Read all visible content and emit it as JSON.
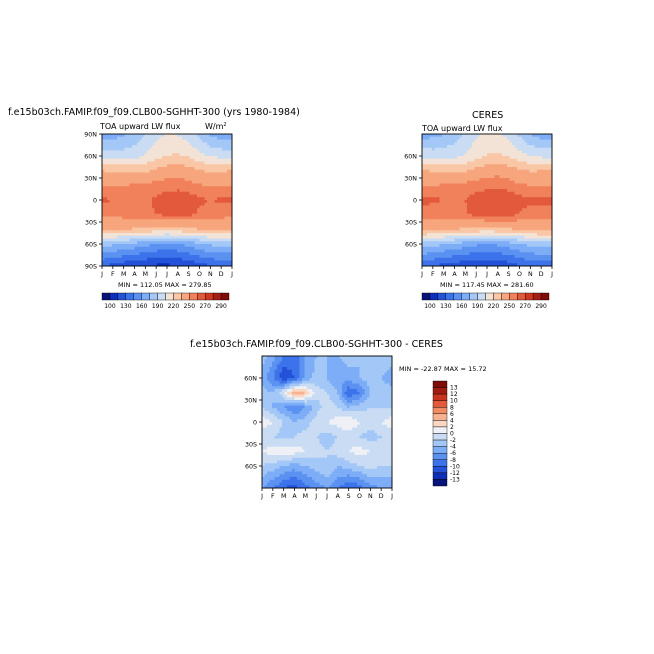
{
  "colors": {
    "model_palette": [
      "#08147a",
      "#0d2fb8",
      "#2352d9",
      "#3d73ea",
      "#5b92f2",
      "#7cadf6",
      "#a3c8f7",
      "#c9dcf3",
      "#f3e3d6",
      "#f9c7a6",
      "#f7a57c",
      "#f0815a",
      "#e2593c",
      "#cc3a22",
      "#a71f14",
      "#7e0c08"
    ],
    "diff_palette": [
      "#08147a",
      "#0d2fb8",
      "#2352d9",
      "#3d73ea",
      "#5b92f2",
      "#7cadf6",
      "#a3c8f7",
      "#c9dcf3",
      "#eef0f5",
      "#f9d7c2",
      "#f7b391",
      "#f08b63",
      "#e2593c",
      "#c9341f",
      "#a21b12",
      "#7e0c08"
    ]
  },
  "panels": {
    "model": {
      "title": "f.e15b03ch.FAMIP.f09_f09.CLB00-SGHHT-300 (yrs 1980-1984)",
      "subtitle": "TOA upward LW flux",
      "units": "W/m",
      "units_sup": "2",
      "stats": "MIN = 112.05  MAX = 279.85",
      "yticks": [
        "90N",
        "60N",
        "30N",
        "0",
        "30S",
        "60S",
        "90S"
      ],
      "xticks": [
        "J",
        "F",
        "M",
        "A",
        "M",
        "J",
        "J",
        "A",
        "S",
        "O",
        "N",
        "D",
        "J"
      ],
      "colorbar_labels": [
        "100",
        "130",
        "160",
        "190",
        "220",
        "250",
        "270",
        "290"
      ]
    },
    "obs": {
      "title": "CERES",
      "subtitle": "TOA upward LW flux",
      "stats": "MIN = 117.45  MAX = 281.60",
      "yticks": [
        "60N",
        "30N",
        "0",
        "30S",
        "60S"
      ],
      "xticks": [
        "J",
        "F",
        "M",
        "A",
        "M",
        "J",
        "J",
        "A",
        "S",
        "O",
        "N",
        "D",
        "J"
      ],
      "colorbar_labels": [
        "100",
        "130",
        "160",
        "190",
        "220",
        "250",
        "270",
        "290"
      ]
    },
    "diff": {
      "title": "f.e15b03ch.FAMIP.f09_f09.CLB00-SGHHT-300  - CERES",
      "stats": "MIN = -22.87  MAX =  15.72",
      "yticks": [
        "60N",
        "30N",
        "0",
        "30S",
        "60S"
      ],
      "xticks": [
        "J",
        "F",
        "M",
        "A",
        "M",
        "J",
        "J",
        "A",
        "S",
        "O",
        "N",
        "D",
        "J"
      ],
      "colorbar_labels": [
        "13",
        "12",
        "10",
        "8",
        "6",
        "4",
        "2",
        "0",
        "-2",
        "-4",
        "-6",
        "-8",
        "-10",
        "-12",
        "-13"
      ]
    }
  },
  "chart_data": [
    {
      "type": "heatmap",
      "title": "f.e15b03ch.FAMIP.f09_f09.CLB00-SGHHT-300 (yrs 1980-1984)",
      "subtitle": "TOA upward LW flux",
      "xlabel": "",
      "ylabel": "",
      "x": [
        "J",
        "F",
        "M",
        "A",
        "M",
        "J",
        "J",
        "A",
        "S",
        "O",
        "N",
        "D",
        "J"
      ],
      "y": [
        -90,
        -60,
        -30,
        0,
        30,
        60,
        90
      ],
      "ylim": [
        -90,
        90
      ],
      "levels": [
        100,
        115,
        130,
        145,
        160,
        175,
        190,
        205,
        220,
        235,
        250,
        260,
        270,
        280,
        290
      ],
      "values": [
        [
          130,
          125,
          120,
          118,
          115,
          112,
          112,
          113,
          118,
          124,
          128,
          132,
          130
        ],
        [
          180,
          178,
          175,
          170,
          165,
          160,
          158,
          160,
          165,
          172,
          178,
          180,
          180
        ],
        [
          240,
          238,
          236,
          234,
          232,
          230,
          229,
          230,
          232,
          235,
          238,
          240,
          240
        ],
        [
          252,
          253,
          254,
          256,
          258,
          260,
          262,
          263,
          262,
          258,
          255,
          253,
          252
        ],
        [
          262,
          260,
          258,
          256,
          258,
          262,
          265,
          268,
          266,
          262,
          260,
          262,
          262
        ],
        [
          248,
          249,
          250,
          251,
          253,
          255,
          256,
          256,
          254,
          251,
          249,
          248,
          248
        ],
        [
          235,
          233,
          232,
          231,
          233,
          238,
          243,
          245,
          242,
          236,
          233,
          234,
          235
        ],
        [
          200,
          198,
          198,
          200,
          206,
          214,
          220,
          222,
          218,
          210,
          204,
          201,
          200
        ],
        [
          165,
          168,
          172,
          180,
          190,
          200,
          206,
          204,
          198,
          185,
          172,
          166,
          165
        ]
      ],
      "lat": [
        -90,
        -60,
        -40,
        -20,
        0,
        20,
        40,
        60,
        90
      ],
      "stats": {
        "min": 112.05,
        "max": 279.85
      }
    },
    {
      "type": "heatmap",
      "title": "CERES",
      "subtitle": "TOA upward LW flux",
      "xlabel": "",
      "ylabel": "",
      "x": [
        "J",
        "F",
        "M",
        "A",
        "M",
        "J",
        "J",
        "A",
        "S",
        "O",
        "N",
        "D",
        "J"
      ],
      "y": [
        -60,
        -30,
        0,
        30,
        60
      ],
      "ylim": [
        -90,
        90
      ],
      "levels": [
        100,
        115,
        130,
        145,
        160,
        175,
        190,
        205,
        220,
        235,
        250,
        260,
        270,
        280,
        290
      ],
      "values": [
        [
          135,
          130,
          125,
          122,
          119,
          117,
          117,
          118,
          122,
          128,
          132,
          136,
          135
        ],
        [
          182,
          180,
          177,
          172,
          168,
          163,
          162,
          163,
          168,
          174,
          180,
          182,
          182
        ],
        [
          241,
          239,
          237,
          235,
          233,
          231,
          230,
          231,
          233,
          236,
          239,
          241,
          241
        ],
        [
          253,
          254,
          255,
          257,
          259,
          262,
          264,
          265,
          263,
          259,
          256,
          254,
          253
        ],
        [
          264,
          262,
          260,
          258,
          260,
          264,
          267,
          270,
          268,
          264,
          262,
          264,
          264
        ],
        [
          249,
          250,
          251,
          252,
          254,
          256,
          257,
          257,
          255,
          252,
          250,
          249,
          249
        ],
        [
          236,
          234,
          233,
          232,
          234,
          239,
          244,
          246,
          243,
          237,
          234,
          235,
          236
        ],
        [
          201,
          199,
          199,
          201,
          207,
          215,
          221,
          223,
          219,
          211,
          205,
          202,
          201
        ],
        [
          167,
          170,
          174,
          182,
          192,
          202,
          208,
          206,
          200,
          187,
          174,
          168,
          167
        ]
      ],
      "lat": [
        -90,
        -60,
        -40,
        -20,
        0,
        20,
        40,
        60,
        90
      ],
      "stats": {
        "min": 117.45,
        "max": 281.6
      }
    },
    {
      "type": "heatmap",
      "title": "f.e15b03ch.FAMIP.f09_f09.CLB00-SGHHT-300  - CERES",
      "xlabel": "",
      "ylabel": "",
      "x": [
        "J",
        "F",
        "M",
        "A",
        "M",
        "J",
        "J",
        "A",
        "S",
        "O",
        "N",
        "D",
        "J"
      ],
      "y": [
        -60,
        -30,
        0,
        30,
        60
      ],
      "ylim": [
        -90,
        90
      ],
      "levels": [
        -13,
        -12,
        -10,
        -8,
        -6,
        -4,
        -2,
        0,
        2,
        4,
        6,
        8,
        10,
        12,
        13
      ],
      "values": [
        [
          -6,
          -8,
          -10,
          -11,
          -9,
          -7,
          -6,
          -8,
          -10,
          -9,
          -7,
          -6,
          -6
        ],
        [
          -2,
          -3,
          -4,
          -5,
          -4,
          -3,
          -2,
          -4,
          -3,
          -2,
          -1,
          -2,
          -2
        ],
        [
          0,
          1,
          2,
          1,
          0,
          -1,
          -2,
          -1,
          0,
          1,
          0,
          -1,
          0
        ],
        [
          -1,
          -2,
          -3,
          -2,
          -1,
          -2,
          -3,
          -2,
          -1,
          -2,
          -3,
          -2,
          -1
        ],
        [
          1,
          0,
          -2,
          -4,
          -3,
          -1,
          0,
          1,
          2,
          0,
          -1,
          0,
          1
        ],
        [
          -2,
          -4,
          -6,
          -8,
          -6,
          -3,
          -1,
          -2,
          -4,
          -3,
          -2,
          -2,
          -2
        ],
        [
          -3,
          -4,
          0,
          6,
          4,
          -1,
          -2,
          -4,
          -10,
          -8,
          -4,
          -3,
          -3
        ],
        [
          -5,
          -8,
          -12,
          -10,
          -6,
          -3,
          -4,
          -6,
          -5,
          -4,
          -3,
          -4,
          -5
        ],
        [
          -3,
          -5,
          -8,
          -9,
          -6,
          -4,
          -4,
          -4,
          -3,
          -4,
          -4,
          -3,
          -3
        ]
      ],
      "lat": [
        -90,
        -60,
        -40,
        -20,
        0,
        20,
        40,
        60,
        90
      ],
      "stats": {
        "min": -22.87,
        "max": 15.72
      }
    }
  ]
}
